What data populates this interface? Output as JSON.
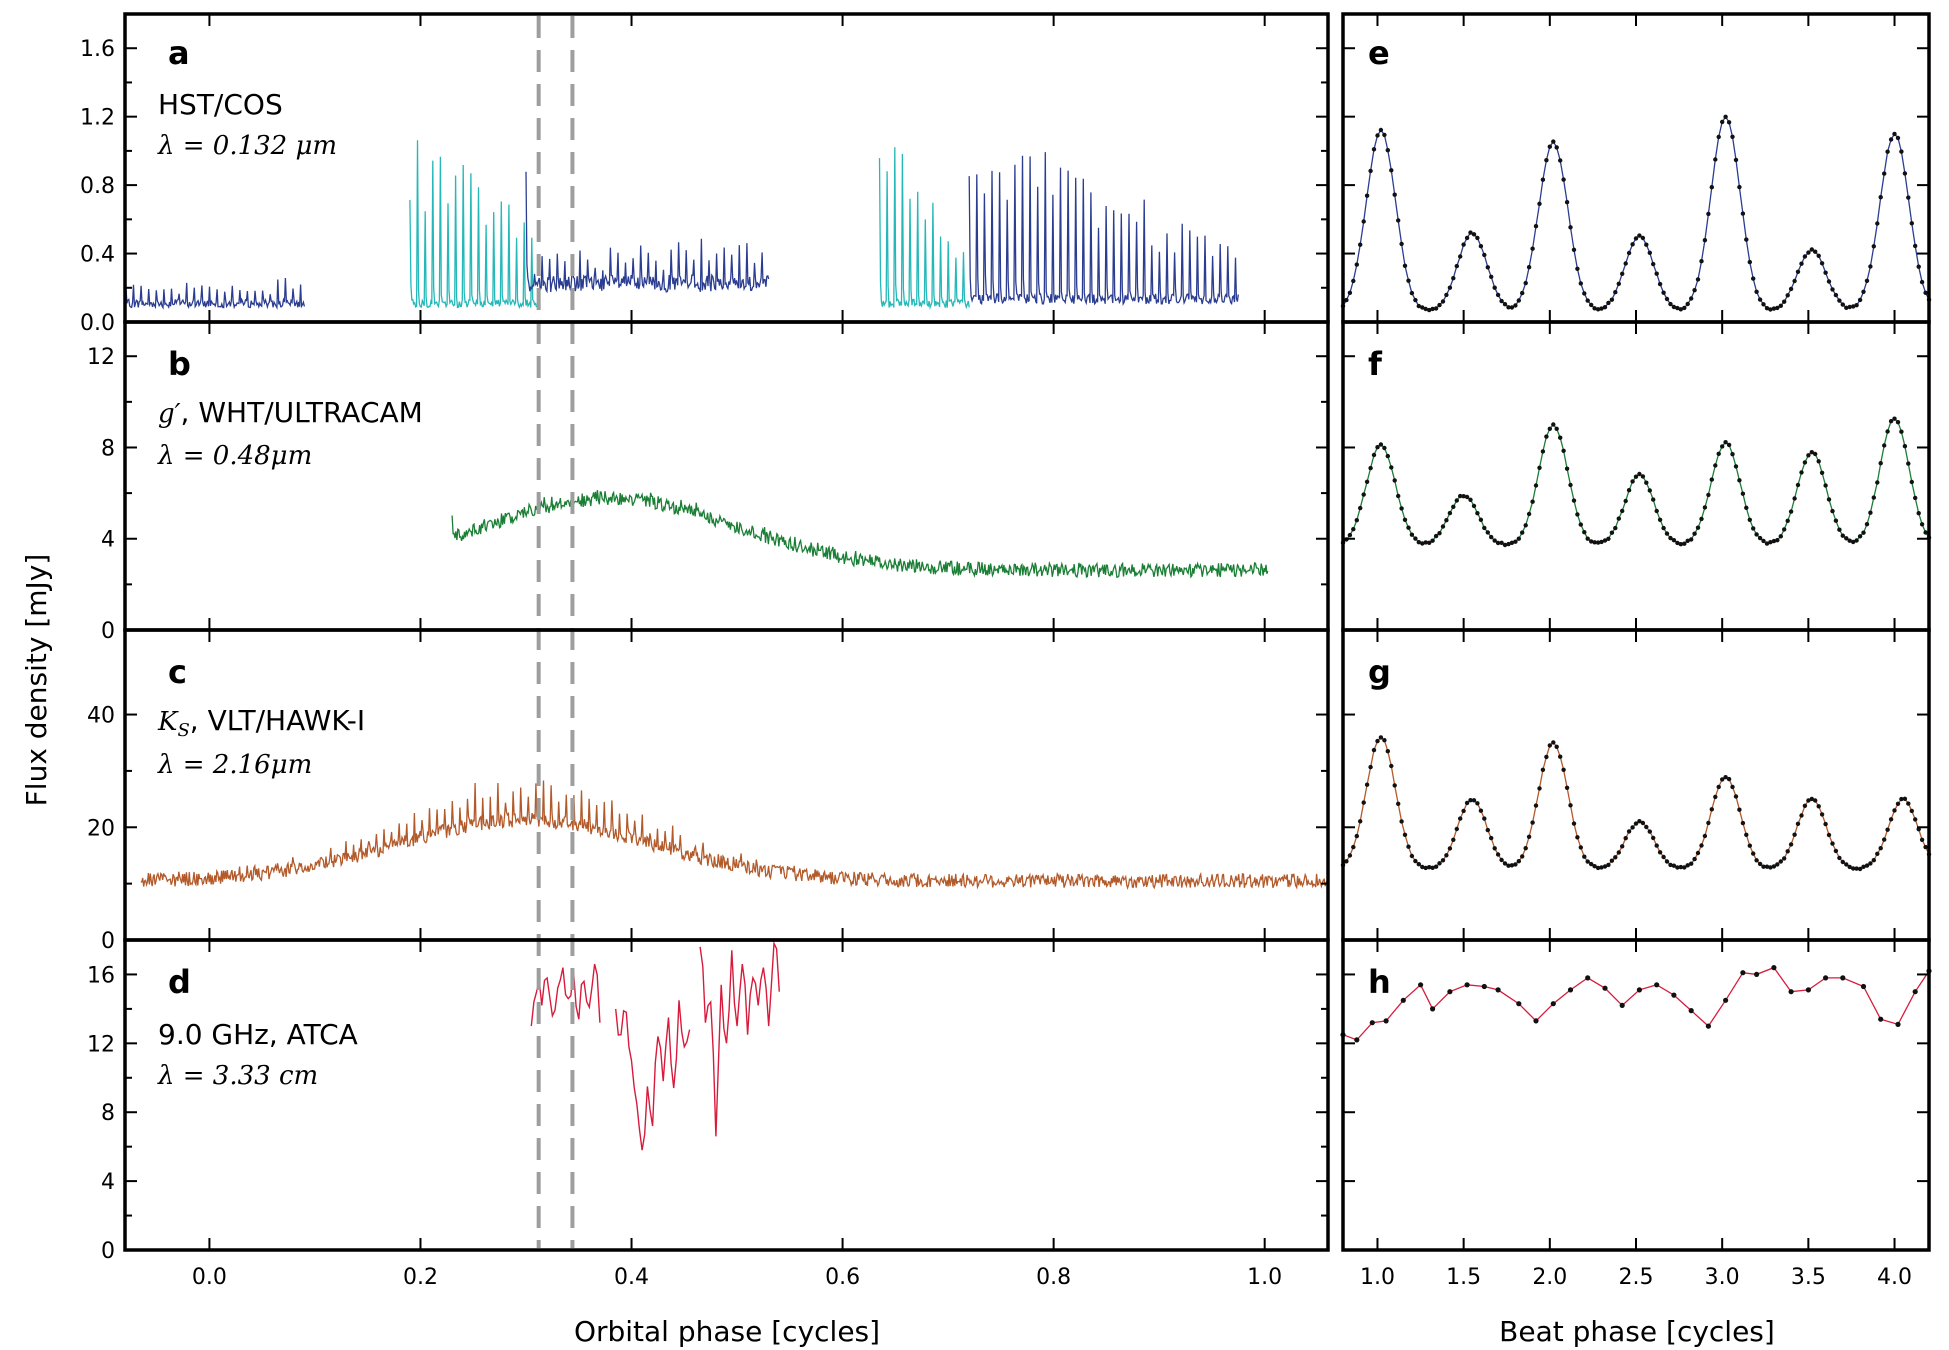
{
  "chart_data": [
    {
      "panel": "a",
      "type": "line",
      "label": "HST/COS",
      "sublabel": "λ = 0.132 μm",
      "ylim": [
        0,
        1.8
      ],
      "yticks": [
        0.0,
        0.4,
        0.8,
        1.2,
        1.6
      ],
      "ytick_labels": [
        "0.0",
        "0.4",
        "0.8",
        "1.2",
        "1.6"
      ],
      "xlim": [
        -0.08,
        1.06
      ],
      "colors": {
        "primary": "#2b3d91",
        "secondary": "#25b8b8"
      },
      "segments": [
        {
          "x0": -0.08,
          "x1": 0.09,
          "period": 0.0072,
          "base": 0.12,
          "amp": 0.7,
          "trend": 0.0,
          "color": "primary"
        },
        {
          "x0": 0.19,
          "x1": 0.31,
          "period": 0.0072,
          "base": 0.12,
          "amp": 0.9,
          "trend": 0.1,
          "color": "secondary"
        },
        {
          "x0": 0.3,
          "x1": 0.53,
          "period": 0.0072,
          "base": 0.25,
          "amp": 1.0,
          "trend": -0.3,
          "color": "primary"
        },
        {
          "x0": 0.635,
          "x1": 0.72,
          "period": 0.0072,
          "base": 0.12,
          "amp": 1.2,
          "trend": -0.4,
          "color": "secondary"
        },
        {
          "x0": 0.72,
          "x1": 0.975,
          "period": 0.0072,
          "base": 0.15,
          "amp": 1.1,
          "trend": -0.5,
          "color": "primary"
        }
      ]
    },
    {
      "panel": "b",
      "type": "line",
      "label": "g′, WHT/ULTRACAM",
      "sublabel": "λ = 0.48μm",
      "ylim": [
        0,
        13.5
      ],
      "yticks": [
        0,
        4,
        8,
        12
      ],
      "ytick_labels": [
        "0",
        "4",
        "8",
        "12"
      ],
      "xlim": [
        -0.08,
        1.06
      ],
      "color": "#1a7f35",
      "segments": [
        {
          "x0": 0.23,
          "x1": 1.003,
          "period": 0.0072,
          "base": 2.5,
          "amp": 3.5,
          "shape": "bump",
          "peak_x": 0.38,
          "color": "primary"
        }
      ],
      "colors": {
        "primary": "#1a7f35"
      }
    },
    {
      "panel": "c",
      "type": "line",
      "label": "K_S, VLT/HAWK-I",
      "sublabel": "λ = 2.16μm",
      "ylim": [
        0,
        55
      ],
      "yticks": [
        0,
        20,
        40
      ],
      "ytick_labels": [
        "0",
        "20",
        "40"
      ],
      "xlim": [
        -0.08,
        1.06
      ],
      "color": "#b35a2a",
      "segments": [
        {
          "x0": -0.065,
          "x1": 1.06,
          "period": 0.0072,
          "base": 10,
          "amp": 12,
          "shape": "bump",
          "peak_x": 0.3,
          "color": "primary"
        }
      ],
      "colors": {
        "primary": "#b35a2a"
      }
    },
    {
      "panel": "d",
      "type": "line",
      "label": "9.0 GHz, ATCA",
      "sublabel": "λ = 3.33 cm",
      "ylim": [
        0,
        18
      ],
      "yticks": [
        0,
        4,
        8,
        12,
        16
      ],
      "ytick_labels": [
        "0",
        "4",
        "8",
        "12",
        "16"
      ],
      "xlim": [
        -0.08,
        1.06
      ],
      "color": "#d81b3c",
      "series": [
        {
          "x": [
            0.305,
            0.31,
            0.315,
            0.32,
            0.325,
            0.33,
            0.335,
            0.34,
            0.345,
            0.35,
            0.355,
            0.36,
            0.365,
            0.37
          ],
          "y": [
            13.0,
            15.0,
            14.2,
            15.8,
            13.6,
            15.2,
            16.4,
            14.6,
            16.2,
            13.4,
            15.6,
            14.1,
            16.6,
            13.2
          ]
        },
        {
          "x": [
            0.385,
            0.39,
            0.395,
            0.4,
            0.405,
            0.41,
            0.415,
            0.42,
            0.425,
            0.43,
            0.435,
            0.44,
            0.445,
            0.45,
            0.455
          ],
          "y": [
            14.0,
            12.5,
            13.8,
            11.0,
            8.5,
            5.8,
            9.5,
            7.2,
            12.4,
            9.8,
            13.5,
            9.4,
            14.5,
            11.8,
            12.8
          ]
        },
        {
          "x": [
            0.465,
            0.47,
            0.475,
            0.48,
            0.485,
            0.49,
            0.495,
            0.5,
            0.505,
            0.51,
            0.515,
            0.52,
            0.525,
            0.53,
            0.535,
            0.54
          ],
          "y": [
            17.6,
            13.2,
            14.4,
            6.6,
            15.4,
            12.0,
            17.4,
            13.0,
            16.6,
            12.5,
            15.8,
            14.2,
            16.4,
            13.0,
            17.8,
            15.0
          ]
        }
      ]
    },
    {
      "panel": "e",
      "type": "line",
      "ylim": [
        0,
        1.8
      ],
      "xlim": [
        0.8,
        4.2
      ],
      "color": "#2b3d91",
      "peaks": [
        [
          1.02,
          1.12
        ],
        [
          1.55,
          0.52
        ],
        [
          2.02,
          1.05
        ],
        [
          2.52,
          0.5
        ],
        [
          3.02,
          1.2
        ],
        [
          3.52,
          0.42
        ],
        [
          4.0,
          1.1
        ]
      ],
      "baseline": 0.06
    },
    {
      "panel": "f",
      "type": "line",
      "ylim": [
        0,
        13.5
      ],
      "xlim": [
        0.8,
        4.2
      ],
      "color": "#1a7f35",
      "peaks": [
        [
          1.02,
          8.1
        ],
        [
          1.5,
          5.9
        ],
        [
          2.02,
          9.0
        ],
        [
          2.52,
          6.8
        ],
        [
          3.02,
          8.2
        ],
        [
          3.52,
          7.8
        ],
        [
          4.0,
          9.3
        ]
      ],
      "baseline": 3.7
    },
    {
      "panel": "g",
      "type": "line",
      "ylim": [
        0,
        55
      ],
      "xlim": [
        0.8,
        4.2
      ],
      "color": "#b35a2a",
      "peaks": [
        [
          1.02,
          36
        ],
        [
          1.55,
          25
        ],
        [
          2.02,
          35
        ],
        [
          2.52,
          21
        ],
        [
          3.02,
          29
        ],
        [
          3.52,
          25
        ],
        [
          4.05,
          25
        ]
      ],
      "baseline": 12.5
    },
    {
      "panel": "h",
      "type": "line",
      "ylim": [
        0,
        18
      ],
      "xlim": [
        0.8,
        4.2
      ],
      "color": "#d81b3c",
      "x": [
        0.8,
        0.88,
        0.97,
        1.05,
        1.15,
        1.25,
        1.32,
        1.42,
        1.52,
        1.62,
        1.7,
        1.82,
        1.92,
        2.02,
        2.12,
        2.22,
        2.32,
        2.42,
        2.52,
        2.62,
        2.72,
        2.82,
        2.92,
        3.02,
        3.12,
        3.2,
        3.3,
        3.4,
        3.5,
        3.6,
        3.7,
        3.82,
        3.92,
        4.02,
        4.12,
        4.2
      ],
      "y": [
        12.5,
        12.2,
        13.2,
        13.3,
        14.5,
        15.4,
        14.0,
        15.0,
        15.4,
        15.3,
        15.1,
        14.3,
        13.3,
        14.3,
        15.1,
        15.8,
        15.2,
        14.2,
        15.1,
        15.4,
        14.8,
        13.9,
        13.0,
        14.5,
        16.1,
        16.0,
        16.4,
        15.0,
        15.1,
        15.8,
        15.8,
        15.3,
        13.4,
        13.1,
        15.0,
        16.2
      ]
    }
  ],
  "shared": {
    "ylabel": "Flux density [mJy]",
    "left_xlabel": "Orbital phase [cycles]",
    "right_xlabel": "Beat phase [cycles]",
    "left_xticks": [
      0.0,
      0.2,
      0.4,
      0.6,
      0.8,
      1.0
    ],
    "left_xtick_labels": [
      "0.0",
      "0.2",
      "0.4",
      "0.6",
      "0.8",
      "1.0"
    ],
    "right_xticks": [
      1.0,
      1.5,
      2.0,
      2.5,
      3.0,
      3.5,
      4.0
    ],
    "right_xtick_labels": [
      "1.0",
      "1.5",
      "2.0",
      "2.5",
      "3.0",
      "3.5",
      "4.0"
    ],
    "vlines_phase": [
      0.312,
      0.344
    ],
    "vline_color": "#9e9e9e"
  },
  "labels": {
    "a_letter": "a",
    "b_letter": "b",
    "c_letter": "c",
    "d_letter": "d",
    "e_letter": "e",
    "f_letter": "f",
    "g_letter": "g",
    "h_letter": "h",
    "a_inst": "HST/COS",
    "a_lambda": "λ = 0.132 μm",
    "b_inst": ", WHT/ULTRACAM",
    "b_prefix": "g′",
    "b_lambda": "λ = 0.48μm",
    "c_inst": ", VLT/HAWK-I",
    "c_prefix": "K",
    "c_sub": "S",
    "c_lambda": "λ = 2.16μm",
    "d_inst": "9.0 GHz, ATCA",
    "d_lambda": "λ = 3.33 cm"
  }
}
